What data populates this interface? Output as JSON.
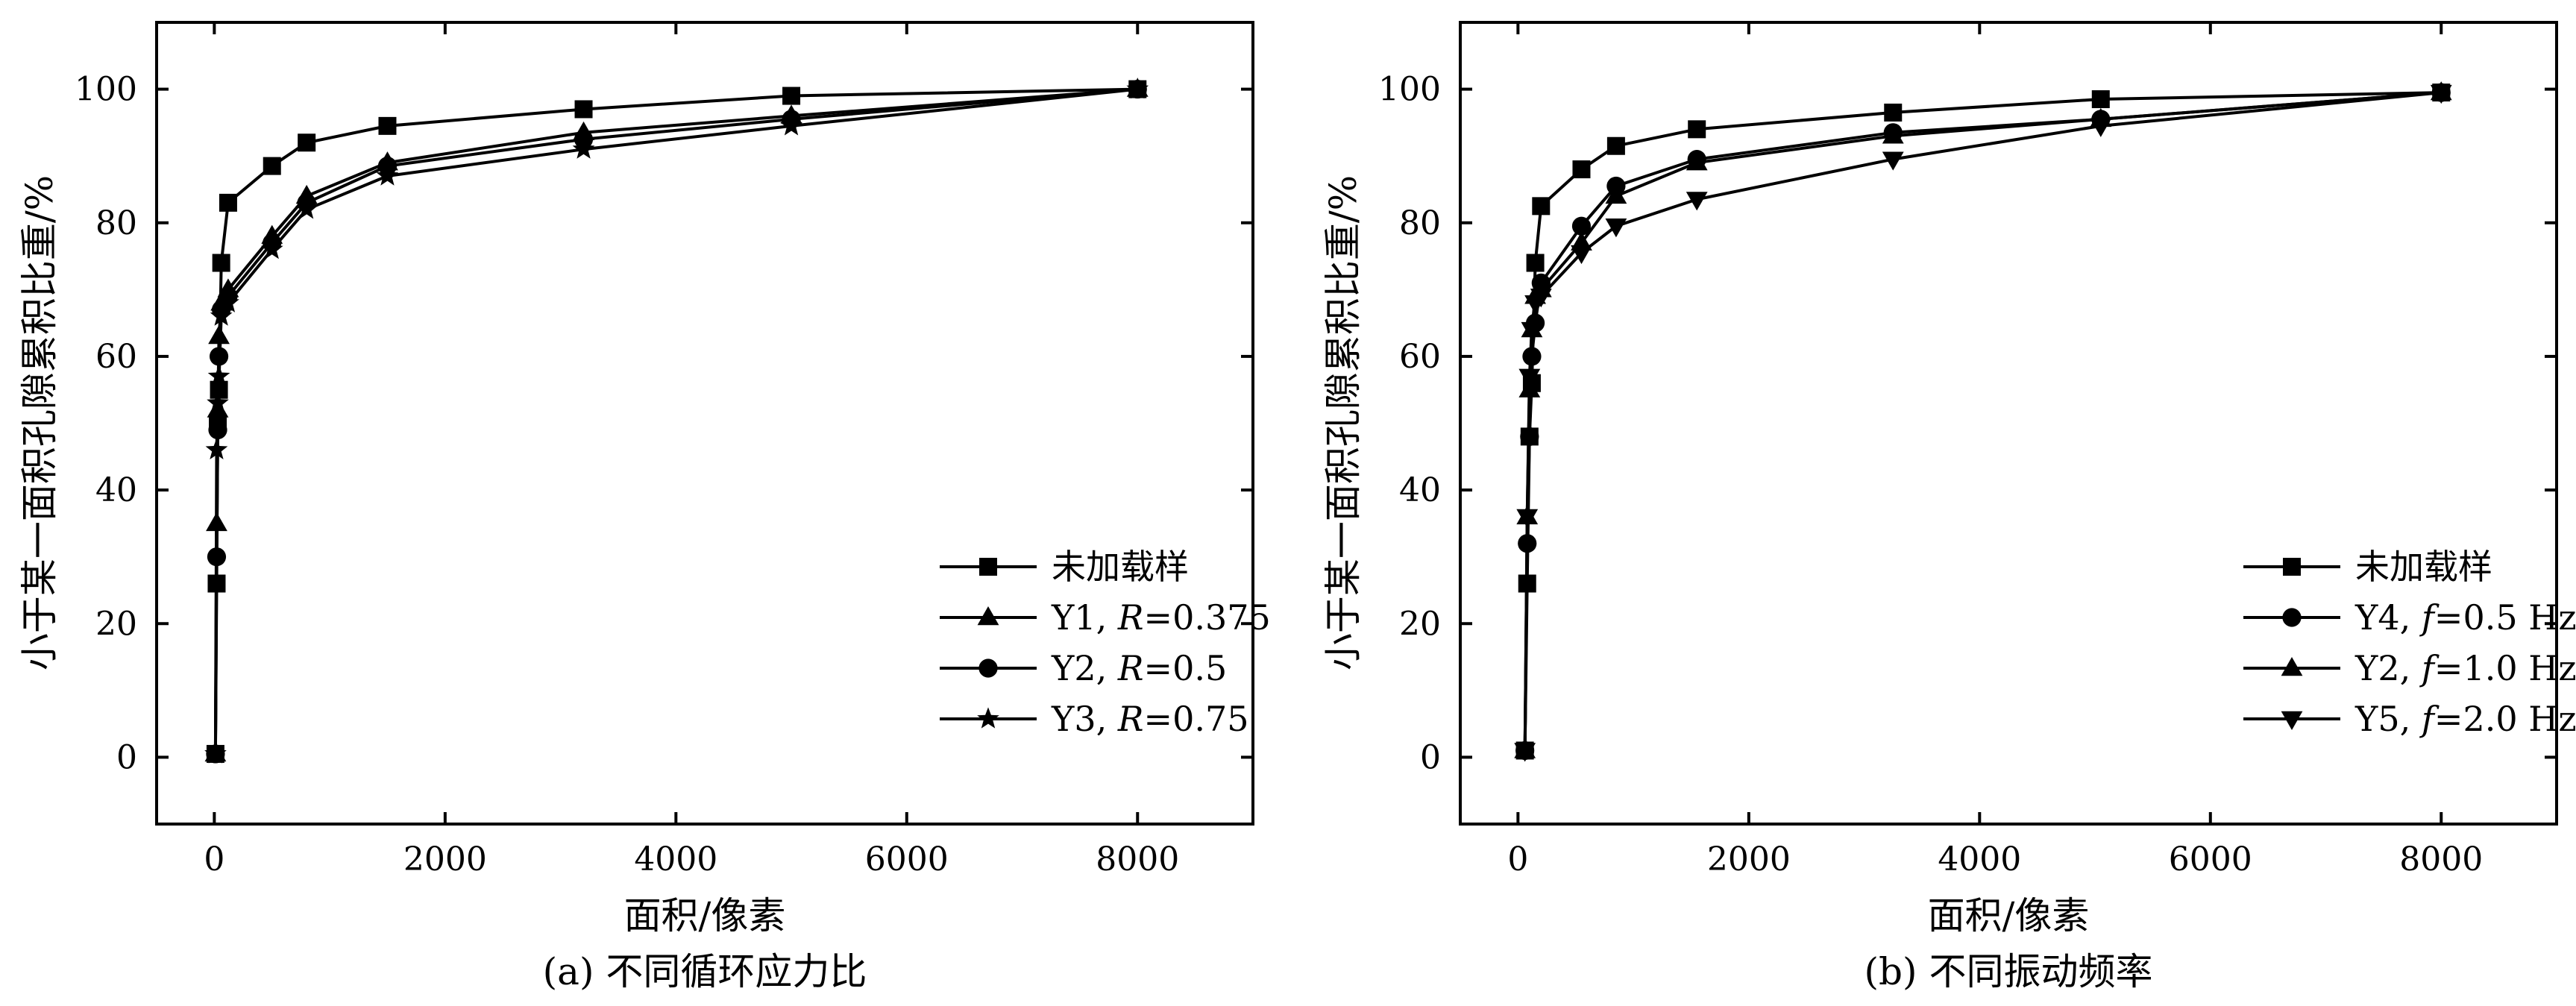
{
  "chart_data": [
    {
      "type": "line",
      "caption": "(a) 不同循环应力比",
      "xlabel": "面积/像素",
      "ylabel": "小于某一面积孔隙累积比重/%",
      "xlim": [
        -500,
        9000
      ],
      "ylim": [
        -10,
        110
      ],
      "xticks": [
        0,
        2000,
        4000,
        6000,
        8000
      ],
      "yticks": [
        0,
        20,
        40,
        60,
        80,
        100
      ],
      "grid": false,
      "legend_position": "bottom-right",
      "series": [
        {
          "name": "未加载样",
          "marker": "square",
          "x": [
            10,
            20,
            30,
            40,
            60,
            120,
            500,
            800,
            1500,
            3200,
            5000,
            8000
          ],
          "y": [
            0.5,
            26,
            50,
            55,
            74,
            83,
            88.5,
            92,
            94.5,
            97,
            99,
            100
          ]
        },
        {
          "name": "Y1, R=0.375",
          "marker": "triangle-up",
          "x": [
            10,
            20,
            30,
            40,
            60,
            120,
            500,
            800,
            1500,
            3200,
            5000,
            8000
          ],
          "y": [
            0.5,
            35,
            52,
            63,
            68,
            70,
            78,
            84,
            89,
            93.5,
            96,
            100
          ]
        },
        {
          "name": "Y2, R=0.5",
          "marker": "circle",
          "x": [
            10,
            20,
            30,
            40,
            60,
            120,
            500,
            800,
            1500,
            3200,
            5000,
            8000
          ],
          "y": [
            0.5,
            30,
            49,
            60,
            67,
            69,
            77,
            83,
            88.5,
            92.5,
            95.5,
            100
          ]
        },
        {
          "name": "Y3, R=0.75",
          "marker": "star",
          "x": [
            10,
            20,
            30,
            40,
            60,
            120,
            500,
            800,
            1500,
            3200,
            5000,
            8000
          ],
          "y": [
            0.5,
            46,
            53,
            57,
            66,
            68,
            76,
            82,
            87,
            91,
            94.5,
            100
          ]
        }
      ]
    },
    {
      "type": "line",
      "caption": "(b) 不同振动频率",
      "xlabel": "面积/像素",
      "ylabel": "小于某一面积孔隙累积比重/%",
      "xlim": [
        -500,
        9000
      ],
      "ylim": [
        -10,
        110
      ],
      "xticks": [
        0,
        2000,
        4000,
        6000,
        8000
      ],
      "yticks": [
        0,
        20,
        40,
        60,
        80,
        100
      ],
      "grid": false,
      "legend_position": "bottom-right",
      "series": [
        {
          "name": "未加载样",
          "marker": "square",
          "x": [
            60,
            80,
            100,
            120,
            150,
            200,
            550,
            850,
            1550,
            3250,
            5050,
            8000
          ],
          "y": [
            1,
            26,
            48,
            56,
            74,
            82.5,
            88,
            91.5,
            94,
            96.5,
            98.5,
            99.5
          ]
        },
        {
          "name": "Y4, f=0.5 Hz",
          "marker": "circle",
          "x": [
            60,
            80,
            100,
            120,
            150,
            200,
            550,
            850,
            1550,
            3250,
            5050,
            8000
          ],
          "y": [
            1,
            32,
            48,
            60,
            65,
            71,
            79.5,
            85.5,
            89.5,
            93.5,
            95.5,
            99.5
          ]
        },
        {
          "name": "Y2, f=1.0 Hz",
          "marker": "triangle-up",
          "x": [
            60,
            80,
            100,
            120,
            150,
            200,
            550,
            850,
            1550,
            3250,
            5050,
            8000
          ],
          "y": [
            1,
            36,
            55,
            64,
            69,
            70,
            77,
            84,
            89,
            93,
            95.5,
            99.5
          ]
        },
        {
          "name": "Y5, f=2.0 Hz",
          "marker": "triangle-down",
          "x": [
            60,
            80,
            100,
            120,
            150,
            200,
            550,
            850,
            1550,
            3250,
            5050,
            8000
          ],
          "y": [
            1,
            36,
            57,
            64,
            68,
            69,
            75.5,
            79.5,
            83.5,
            89.5,
            94.5,
            99.5
          ]
        }
      ]
    }
  ],
  "legend_a": [
    {
      "pre": "未加载样",
      "var": "",
      "post": ""
    },
    {
      "pre": "Y1, ",
      "var": "R",
      "post": "=0.375"
    },
    {
      "pre": "Y2, ",
      "var": "R",
      "post": "=0.5"
    },
    {
      "pre": "Y3, ",
      "var": "R",
      "post": "=0.75"
    }
  ],
  "legend_b": [
    {
      "pre": "未加载样",
      "var": "",
      "post": ""
    },
    {
      "pre": "Y4, ",
      "var": "f",
      "post": "=0.5 Hz"
    },
    {
      "pre": "Y2, ",
      "var": "f",
      "post": "=1.0 Hz"
    },
    {
      "pre": "Y5, ",
      "var": "f",
      "post": "=2.0 Hz"
    }
  ]
}
